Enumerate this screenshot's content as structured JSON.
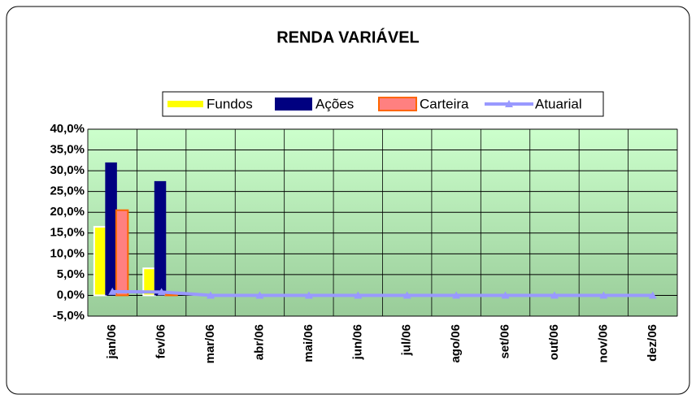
{
  "chart_data": {
    "type": "bar",
    "title": "RENDA VARIÁVEL",
    "categories": [
      "jan/06",
      "fev/06",
      "mar/06",
      "abr/06",
      "mai/06",
      "jun/06",
      "jul/06",
      "ago/06",
      "set/06",
      "out/06",
      "nov/06",
      "dez/06"
    ],
    "series": [
      {
        "name": "Fundos",
        "type": "bar",
        "color": "#ffff00",
        "values": [
          16.5,
          6.5,
          null,
          null,
          null,
          null,
          null,
          null,
          null,
          null,
          null,
          null
        ]
      },
      {
        "name": "Ações",
        "type": "bar",
        "color": "#000080",
        "values": [
          32,
          27.5,
          null,
          null,
          null,
          null,
          null,
          null,
          null,
          null,
          null,
          null
        ]
      },
      {
        "name": "Carteira",
        "type": "bar",
        "color": "#ff8080",
        "values": [
          20.5,
          0.2,
          null,
          null,
          null,
          null,
          null,
          null,
          null,
          null,
          null,
          null
        ]
      },
      {
        "name": "Atuarial",
        "type": "line",
        "color": "#9999ff",
        "values": [
          0.9,
          0.8,
          0,
          0,
          0,
          0,
          0,
          0,
          0,
          0,
          0,
          0
        ]
      }
    ],
    "ylim": [
      -5,
      40
    ],
    "yticks": [
      {
        "value": -5,
        "label": "-5,0%"
      },
      {
        "value": 0,
        "label": "0,0%"
      },
      {
        "value": 5,
        "label": "5,0%"
      },
      {
        "value": 10,
        "label": "10,0%"
      },
      {
        "value": 15,
        "label": "15,0%"
      },
      {
        "value": 20,
        "label": "20,0%"
      },
      {
        "value": 25,
        "label": "25,0%"
      },
      {
        "value": 30,
        "label": "30,0%"
      },
      {
        "value": 35,
        "label": "35,0%"
      },
      {
        "value": 40,
        "label": "40,0%"
      }
    ],
    "grid": true,
    "legend": "top"
  }
}
